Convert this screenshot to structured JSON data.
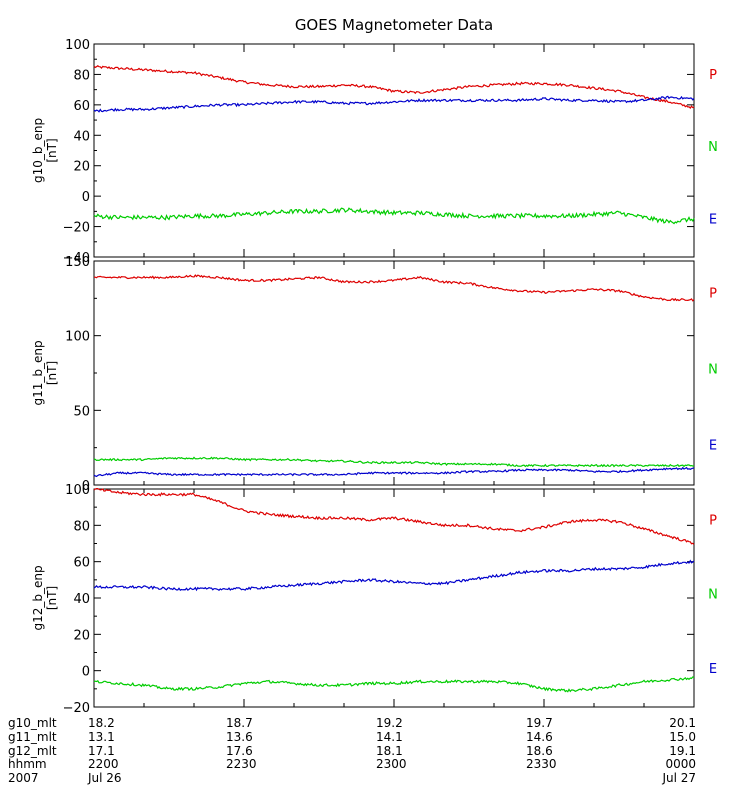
{
  "chart_data": {
    "title": "GOES Magnetometer Data",
    "type": "line",
    "x_ticks": [
      "2200",
      "2230",
      "2300",
      "2330",
      "0000"
    ],
    "x_range": [
      0,
      120
    ],
    "panels": [
      {
        "ylabel": "g10_b_enp",
        "unit": "[nT]",
        "ylim": [
          -40,
          100
        ],
        "yticks": [
          -40,
          -20,
          0,
          20,
          40,
          60,
          80,
          100
        ],
        "ytick_labels": [
          "−40",
          "−20",
          "0",
          "20",
          "40",
          "60",
          "80",
          "100"
        ],
        "legend": [
          {
            "label": "P",
            "color": "#dd0000"
          },
          {
            "label": "N",
            "color": "#00cc00"
          },
          {
            "label": "E",
            "color": "#0000cc"
          }
        ],
        "series": [
          {
            "name": "P",
            "color": "#dd0000",
            "noise": 0.8,
            "x": [
              0,
              5,
              10,
              15,
              20,
              25,
              30,
              35,
              40,
              45,
              50,
              55,
              60,
              65,
              70,
              75,
              80,
              85,
              90,
              95,
              100,
              105,
              110,
              115,
              120
            ],
            "values": [
              85,
              84,
              83,
              82,
              81,
              78,
              75,
              73,
              72,
              72,
              73,
              72,
              69,
              68,
              70,
              72,
              73,
              74,
              74,
              73,
              71,
              69,
              65,
              62,
              58
            ]
          },
          {
            "name": "E",
            "color": "#0000cc",
            "noise": 0.8,
            "x": [
              0,
              5,
              10,
              15,
              20,
              25,
              30,
              35,
              40,
              45,
              50,
              55,
              60,
              65,
              70,
              75,
              80,
              85,
              90,
              95,
              100,
              105,
              110,
              115,
              120
            ],
            "values": [
              56,
              57,
              57,
              58,
              59,
              60,
              60,
              61,
              62,
              62,
              61,
              61,
              62,
              63,
              63,
              63,
              63,
              63,
              64,
              63,
              63,
              62,
              63,
              65,
              64
            ]
          },
          {
            "name": "N",
            "color": "#00cc00",
            "noise": 1.4,
            "x": [
              0,
              5,
              10,
              15,
              20,
              25,
              30,
              35,
              40,
              45,
              50,
              55,
              60,
              65,
              70,
              75,
              80,
              85,
              90,
              95,
              100,
              105,
              110,
              115,
              120
            ],
            "values": [
              -13,
              -14,
              -14,
              -14,
              -13,
              -13,
              -12,
              -11,
              -10,
              -10,
              -9,
              -10,
              -11,
              -11,
              -12,
              -13,
              -13,
              -13,
              -13,
              -13,
              -12,
              -11,
              -14,
              -17,
              -15
            ]
          }
        ]
      },
      {
        "ylabel": "g11_b_enp",
        "unit": "[nT]",
        "ylim": [
          0,
          150
        ],
        "yticks": [
          0,
          50,
          100,
          150
        ],
        "ytick_labels": [
          "0",
          "50",
          "100",
          "150"
        ],
        "legend": [
          {
            "label": "P",
            "color": "#dd0000"
          },
          {
            "label": "N",
            "color": "#00cc00"
          },
          {
            "label": "E",
            "color": "#0000cc"
          }
        ],
        "series": [
          {
            "name": "P",
            "color": "#dd0000",
            "noise": 0.7,
            "x": [
              0,
              5,
              10,
              15,
              20,
              25,
              30,
              35,
              40,
              45,
              50,
              55,
              60,
              65,
              70,
              75,
              80,
              85,
              90,
              95,
              100,
              105,
              110,
              115,
              120
            ],
            "values": [
              139,
              139,
              139,
              139,
              140,
              139,
              137,
              137,
              138,
              139,
              136,
              136,
              137,
              139,
              136,
              135,
              132,
              130,
              129,
              130,
              131,
              130,
              126,
              124,
              124
            ]
          },
          {
            "name": "N",
            "color": "#00cc00",
            "noise": 0.6,
            "x": [
              0,
              5,
              10,
              15,
              20,
              25,
              30,
              35,
              40,
              45,
              50,
              55,
              60,
              65,
              70,
              75,
              80,
              85,
              90,
              95,
              100,
              105,
              110,
              115,
              120
            ],
            "values": [
              17,
              17,
              17,
              18,
              18,
              18,
              17,
              17,
              17,
              16,
              16,
              15,
              15,
              15,
              14,
              14,
              14,
              13,
              13,
              13,
              13,
              13,
              13,
              13,
              13
            ]
          },
          {
            "name": "E",
            "color": "#0000cc",
            "noise": 0.6,
            "x": [
              0,
              5,
              10,
              15,
              20,
              25,
              30,
              35,
              40,
              45,
              50,
              55,
              60,
              65,
              70,
              75,
              80,
              85,
              90,
              95,
              100,
              105,
              110,
              115,
              120
            ],
            "values": [
              6,
              8,
              8,
              7,
              7,
              7,
              7,
              7,
              7,
              7,
              7,
              8,
              8,
              8,
              8,
              9,
              9,
              10,
              10,
              10,
              9,
              9,
              10,
              11,
              11
            ]
          }
        ]
      },
      {
        "ylabel": "g12_b_enp",
        "unit": "[nT]",
        "ylim": [
          -20,
          100
        ],
        "yticks": [
          -20,
          0,
          20,
          40,
          60,
          80,
          100
        ],
        "ytick_labels": [
          "−20",
          "0",
          "20",
          "40",
          "60",
          "80",
          "100"
        ],
        "legend": [
          {
            "label": "P",
            "color": "#dd0000"
          },
          {
            "label": "N",
            "color": "#00cc00"
          },
          {
            "label": "E",
            "color": "#0000cc"
          }
        ],
        "series": [
          {
            "name": "P",
            "color": "#dd0000",
            "noise": 0.7,
            "x": [
              0,
              5,
              10,
              15,
              20,
              25,
              30,
              35,
              40,
              45,
              50,
              55,
              60,
              65,
              70,
              75,
              80,
              85,
              90,
              95,
              100,
              105,
              110,
              115,
              120
            ],
            "values": [
              100,
              98,
              97,
              97,
              97,
              93,
              88,
              86,
              85,
              84,
              84,
              83,
              84,
              82,
              80,
              80,
              78,
              77,
              79,
              82,
              83,
              82,
              78,
              74,
              70
            ]
          },
          {
            "name": "E",
            "color": "#0000cc",
            "noise": 0.7,
            "x": [
              0,
              5,
              10,
              15,
              20,
              25,
              30,
              35,
              40,
              45,
              50,
              55,
              60,
              65,
              70,
              75,
              80,
              85,
              90,
              95,
              100,
              105,
              110,
              115,
              120
            ],
            "values": [
              46,
              46,
              46,
              45,
              45,
              45,
              45,
              46,
              47,
              48,
              49,
              50,
              49,
              48,
              48,
              50,
              52,
              54,
              55,
              55,
              56,
              56,
              57,
              59,
              60
            ]
          },
          {
            "name": "N",
            "color": "#00cc00",
            "noise": 0.7,
            "x": [
              0,
              5,
              10,
              15,
              20,
              25,
              30,
              35,
              40,
              45,
              50,
              55,
              60,
              65,
              70,
              75,
              80,
              85,
              90,
              95,
              100,
              105,
              110,
              115,
              120
            ],
            "values": [
              -6,
              -7,
              -8,
              -10,
              -10,
              -9,
              -7,
              -6,
              -7,
              -8,
              -8,
              -7,
              -7,
              -6,
              -6,
              -6,
              -6,
              -7,
              -10,
              -11,
              -10,
              -8,
              -6,
              -5,
              -4
            ]
          }
        ]
      }
    ]
  },
  "bottom_labels": {
    "rows": [
      {
        "name": "g10_mlt",
        "values": [
          "18.2",
          "18.7",
          "19.2",
          "19.7",
          "20.1"
        ]
      },
      {
        "name": "g11_mlt",
        "values": [
          "13.1",
          "13.6",
          "14.1",
          "14.6",
          "15.0"
        ]
      },
      {
        "name": "g12_mlt",
        "values": [
          "17.1",
          "17.6",
          "18.1",
          "18.6",
          "19.1"
        ]
      },
      {
        "name": "hhmm",
        "values": [
          "2200",
          "2230",
          "2300",
          "2330",
          "0000"
        ]
      },
      {
        "name": "2007",
        "values": [
          "Jul 26",
          "",
          "",
          "",
          "Jul 27"
        ]
      }
    ]
  }
}
